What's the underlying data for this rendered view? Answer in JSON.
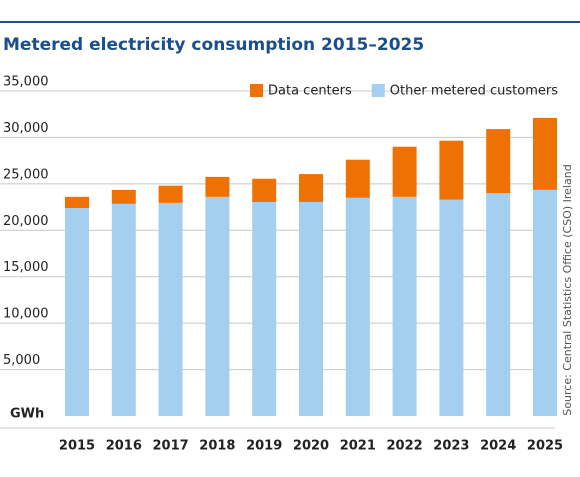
{
  "chart_data": {
    "type": "stacked_bar",
    "title": "Metered electricity consumption 2015–2025",
    "y_axis_label": "GWh",
    "source": "Source: Central Statistics Office (CSO) Ireland",
    "categories": [
      "2015",
      "2016",
      "2017",
      "2018",
      "2019",
      "2020",
      "2021",
      "2022",
      "2023",
      "2024",
      "2025"
    ],
    "series": [
      {
        "name": "Data centers",
        "color": "#ee7203",
        "values": [
          1200,
          1500,
          1850,
          2150,
          2500,
          3000,
          4100,
          5400,
          6350,
          6900,
          7750
        ]
      },
      {
        "name": "Other metered customers",
        "color": "#a5cfee",
        "values": [
          22400,
          22850,
          22950,
          23600,
          23050,
          23050,
          23500,
          23600,
          23300,
          24000,
          24350
        ]
      }
    ],
    "ylim": [
      0,
      35000
    ],
    "yticks": [
      {
        "value": 5000,
        "label": "5,000"
      },
      {
        "value": 10000,
        "label": "10,000"
      },
      {
        "value": 15000,
        "label": "15,000"
      },
      {
        "value": 20000,
        "label": "20,000"
      },
      {
        "value": 25000,
        "label": "25,000"
      },
      {
        "value": 30000,
        "label": "30,000"
      },
      {
        "value": 35000,
        "label": "35,000"
      }
    ],
    "grid": true
  }
}
